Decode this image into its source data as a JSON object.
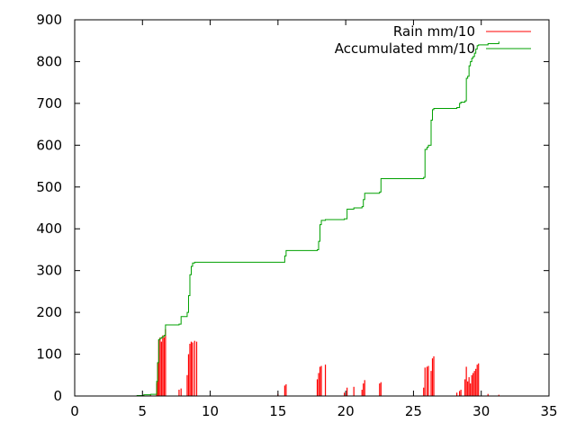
{
  "chart_data": {
    "type": "line",
    "title": "",
    "xlabel": "",
    "ylabel": "",
    "xlim": [
      0,
      35
    ],
    "ylim": [
      0,
      900
    ],
    "x_ticks": [
      0,
      5,
      10,
      15,
      20,
      25,
      30,
      35
    ],
    "y_ticks": [
      0,
      100,
      200,
      300,
      400,
      500,
      600,
      700,
      800,
      900
    ],
    "grid": false,
    "legend_position": "top-right",
    "series": [
      {
        "name": "Rain mm/10",
        "style": "impulses",
        "color": "#ff0000",
        "points": [
          [
            4.6,
            1
          ],
          [
            5.1,
            3
          ],
          [
            5.6,
            2
          ],
          [
            6.05,
            30
          ],
          [
            6.12,
            80
          ],
          [
            6.2,
            135
          ],
          [
            6.3,
            140
          ],
          [
            6.4,
            130
          ],
          [
            6.5,
            145
          ],
          [
            6.6,
            140
          ],
          [
            6.7,
            160
          ],
          [
            7.7,
            15
          ],
          [
            7.85,
            18
          ],
          [
            8.3,
            50
          ],
          [
            8.4,
            100
          ],
          [
            8.5,
            125
          ],
          [
            8.6,
            130
          ],
          [
            8.7,
            128
          ],
          [
            8.85,
            132
          ],
          [
            9.0,
            130
          ],
          [
            15.0,
            5
          ],
          [
            15.5,
            25
          ],
          [
            15.6,
            28
          ],
          [
            17.9,
            40
          ],
          [
            18.0,
            55
          ],
          [
            18.1,
            70
          ],
          [
            18.2,
            72
          ],
          [
            18.5,
            75
          ],
          [
            19.9,
            8
          ],
          [
            20.1,
            20
          ],
          [
            20.6,
            22
          ],
          [
            21.2,
            15
          ],
          [
            21.3,
            30
          ],
          [
            21.4,
            38
          ],
          [
            22.5,
            30
          ],
          [
            22.6,
            33
          ],
          [
            25.75,
            20
          ],
          [
            25.85,
            68
          ],
          [
            26.0,
            70
          ],
          [
            26.1,
            72
          ],
          [
            26.3,
            60
          ],
          [
            26.4,
            90
          ],
          [
            26.5,
            95
          ],
          [
            28.2,
            8
          ],
          [
            28.4,
            12
          ],
          [
            28.5,
            15
          ],
          [
            28.8,
            40
          ],
          [
            28.9,
            70
          ],
          [
            29.0,
            35
          ],
          [
            29.1,
            45
          ],
          [
            29.2,
            30
          ],
          [
            29.3,
            50
          ],
          [
            29.4,
            55
          ],
          [
            29.5,
            60
          ],
          [
            29.6,
            65
          ],
          [
            29.7,
            75
          ],
          [
            29.8,
            78
          ],
          [
            30.5,
            5
          ],
          [
            31.3,
            3
          ]
        ]
      },
      {
        "name": "Accumulated mm/10",
        "style": "steps",
        "color": "#00a000",
        "points": [
          [
            4.1,
            0
          ],
          [
            4.6,
            1
          ],
          [
            5.1,
            3
          ],
          [
            5.6,
            4
          ],
          [
            6.05,
            35
          ],
          [
            6.12,
            80
          ],
          [
            6.2,
            135
          ],
          [
            6.3,
            138
          ],
          [
            6.4,
            140
          ],
          [
            6.5,
            142
          ],
          [
            6.6,
            145
          ],
          [
            6.7,
            170
          ],
          [
            7.7,
            172
          ],
          [
            7.85,
            190
          ],
          [
            8.3,
            200
          ],
          [
            8.4,
            240
          ],
          [
            8.5,
            290
          ],
          [
            8.6,
            310
          ],
          [
            8.7,
            318
          ],
          [
            8.85,
            320
          ],
          [
            9.0,
            320
          ],
          [
            15.0,
            320
          ],
          [
            15.5,
            335
          ],
          [
            15.6,
            348
          ],
          [
            17.9,
            350
          ],
          [
            18.0,
            370
          ],
          [
            18.1,
            410
          ],
          [
            18.2,
            420
          ],
          [
            18.5,
            422
          ],
          [
            19.9,
            424
          ],
          [
            20.1,
            447
          ],
          [
            20.6,
            450
          ],
          [
            21.2,
            453
          ],
          [
            21.3,
            470
          ],
          [
            21.4,
            485
          ],
          [
            22.5,
            488
          ],
          [
            22.6,
            520
          ],
          [
            25.75,
            523
          ],
          [
            25.85,
            590
          ],
          [
            26.0,
            595
          ],
          [
            26.1,
            600
          ],
          [
            26.3,
            660
          ],
          [
            26.4,
            685
          ],
          [
            26.5,
            688
          ],
          [
            28.2,
            690
          ],
          [
            28.4,
            700
          ],
          [
            28.5,
            703
          ],
          [
            28.8,
            706
          ],
          [
            28.9,
            760
          ],
          [
            29.0,
            765
          ],
          [
            29.1,
            790
          ],
          [
            29.2,
            800
          ],
          [
            29.3,
            808
          ],
          [
            29.4,
            812
          ],
          [
            29.5,
            820
          ],
          [
            29.6,
            830
          ],
          [
            29.7,
            838
          ],
          [
            29.8,
            840
          ],
          [
            30.5,
            843
          ],
          [
            31.3,
            848
          ]
        ]
      }
    ]
  }
}
